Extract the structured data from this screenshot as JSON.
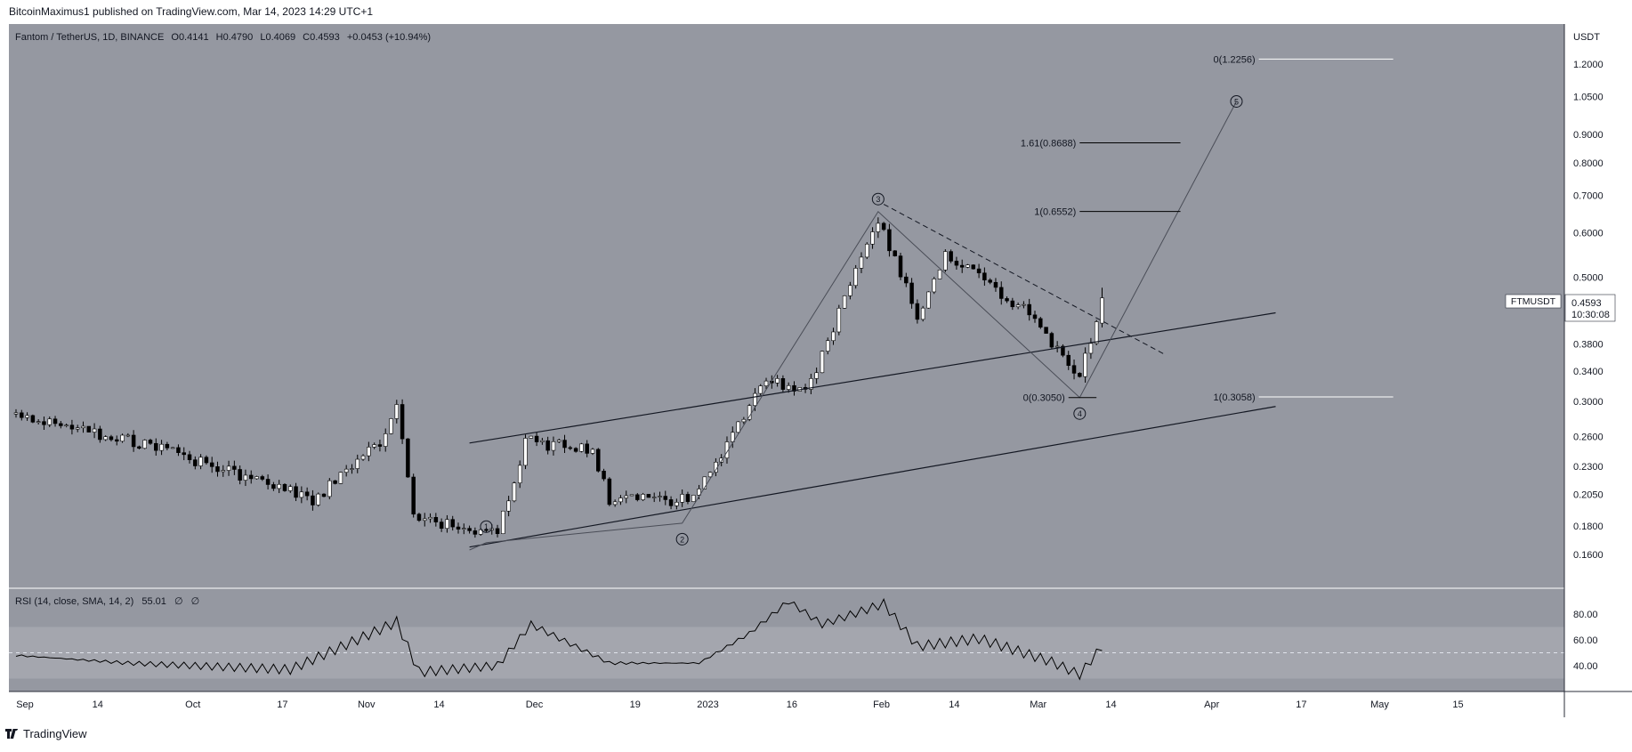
{
  "header": {
    "published": "BitcoinMaximus1 published on TradingView.com, Mar 14, 2023 14:29 UTC+1"
  },
  "footer": {
    "brand": "TradingView"
  },
  "legend": {
    "symbol": "Fantom / TetherUS, 1D, BINANCE",
    "o_label": "O",
    "o_value": "0.4141",
    "h_label": "H",
    "h_value": "0.4790",
    "l_label": "L",
    "l_value": "0.4069",
    "c_label": "C",
    "c_value": "0.4593",
    "change": "+0.0453 (+10.94%)"
  },
  "price_axis": {
    "unit": "USDT",
    "ticks": [
      "1.2000",
      "1.0500",
      "0.9000",
      "0.8000",
      "0.7000",
      "0.6000",
      "0.5000",
      "0.3800",
      "0.3400",
      "0.3000",
      "0.2600",
      "0.2300",
      "0.2050",
      "0.1800",
      "0.1600"
    ]
  },
  "price_label": {
    "ticker": "FTMUSDT",
    "price": "0.4593",
    "countdown": "10:30:08"
  },
  "time_axis": {
    "ticks": [
      "Sep",
      "14",
      "Oct",
      "17",
      "Nov",
      "14",
      "Dec",
      "19",
      "2023",
      "16",
      "Feb",
      "14",
      "Mar",
      "14",
      "Apr",
      "17",
      "May",
      "15"
    ]
  },
  "rsi": {
    "label": "RSI (14, close, SMA, 14, 2)",
    "value": "55.01",
    "extra1": "∅",
    "extra2": "∅",
    "ticks": [
      "80.00",
      "60.00",
      "40.00"
    ],
    "upper_band": 70,
    "lower_band": 30,
    "mid_line": 50
  },
  "fib_levels": [
    {
      "label": "0(1.2256)"
    },
    {
      "label": "1.61(0.8688)"
    },
    {
      "label": "1(0.6552)"
    },
    {
      "label": "0(0.3050)"
    },
    {
      "label": "1(0.3058)"
    }
  ],
  "wave_labels": [
    "1",
    "2",
    "3",
    "4",
    "5"
  ],
  "colors": {
    "chart_bg": "#9598a1",
    "rsi_band": "#a4a6ae",
    "candle_up": "#ffffff",
    "candle_down": "#000000",
    "channel_line": "#131722",
    "fib_white": "#ffffff",
    "fib_black": "#000000",
    "price_tag_bg": "#ffffff"
  },
  "chart_data": {
    "type": "candlestick",
    "title": "Fantom / TetherUS, 1D, BINANCE",
    "y_scale": "log",
    "ylim": [
      0.145,
      1.35
    ],
    "x_range": [
      "2022-09-01",
      "2023-05-20"
    ],
    "candle_range": [
      "2022-09-01",
      "2023-03-14"
    ],
    "last_candle": {
      "date": "2023-03-14",
      "open": 0.4141,
      "high": 0.479,
      "low": 0.4069,
      "close": 0.4593
    },
    "pivot_points": [
      {
        "date": "2022-09-01",
        "close": 0.285
      },
      {
        "date": "2022-09-25",
        "close": 0.25
      },
      {
        "date": "2022-10-12",
        "close": 0.22
      },
      {
        "date": "2022-10-24",
        "close": 0.2
      },
      {
        "date": "2022-11-05",
        "close": 0.255
      },
      {
        "date": "2022-11-08",
        "close": 0.3
      },
      {
        "date": "2022-11-11",
        "close": 0.19
      },
      {
        "date": "2022-11-21",
        "close": 0.175
      },
      {
        "date": "2022-11-26",
        "close": 0.175
      },
      {
        "date": "2022-12-01",
        "close": 0.255
      },
      {
        "date": "2022-12-13",
        "close": 0.245
      },
      {
        "date": "2022-12-16",
        "close": 0.2
      },
      {
        "date": "2022-12-31",
        "close": 0.2
      },
      {
        "date": "2023-01-13",
        "close": 0.33
      },
      {
        "date": "2023-01-20",
        "close": 0.31
      },
      {
        "date": "2023-02-02",
        "close": 0.63
      },
      {
        "date": "2023-02-09",
        "close": 0.43
      },
      {
        "date": "2023-02-14",
        "close": 0.55
      },
      {
        "date": "2023-03-01",
        "close": 0.43
      },
      {
        "date": "2023-03-10",
        "close": 0.33
      },
      {
        "date": "2023-03-14",
        "close": 0.4593
      }
    ],
    "rsi_points": [
      {
        "date": "2022-09-01",
        "value": 48
      },
      {
        "date": "2022-09-21",
        "value": 42
      },
      {
        "date": "2022-10-20",
        "value": 37
      },
      {
        "date": "2022-11-05",
        "value": 68
      },
      {
        "date": "2022-11-08",
        "value": 74
      },
      {
        "date": "2022-11-12",
        "value": 35
      },
      {
        "date": "2022-11-26",
        "value": 40
      },
      {
        "date": "2022-12-02",
        "value": 72
      },
      {
        "date": "2022-12-16",
        "value": 42
      },
      {
        "date": "2023-01-01",
        "value": 42
      },
      {
        "date": "2023-01-10",
        "value": 65
      },
      {
        "date": "2023-01-17",
        "value": 90
      },
      {
        "date": "2023-01-23",
        "value": 72
      },
      {
        "date": "2023-02-03",
        "value": 88
      },
      {
        "date": "2023-02-09",
        "value": 55
      },
      {
        "date": "2023-02-20",
        "value": 61
      },
      {
        "date": "2023-03-05",
        "value": 43
      },
      {
        "date": "2023-03-10",
        "value": 33
      },
      {
        "date": "2023-03-14",
        "value": 55.01
      }
    ],
    "fib_levels": [
      {
        "label": "0(1.2256)",
        "value": 1.2256
      },
      {
        "label": "1.61(0.8688)",
        "value": 0.8688
      },
      {
        "label": "1(0.6552)",
        "value": 0.6552
      },
      {
        "label": "0(0.3050)",
        "value": 0.305
      },
      {
        "label": "1(0.3058)",
        "value": 0.3058
      }
    ],
    "waves": [
      {
        "label": "1",
        "date": "2022-11-24",
        "price": 0.168
      },
      {
        "label": "2",
        "date": "2022-12-29",
        "price": 0.182
      },
      {
        "label": "3",
        "date": "2023-02-02",
        "price": 0.655
      },
      {
        "label": "4",
        "date": "2023-03-10",
        "price": 0.305
      },
      {
        "label": "5",
        "date": "2023-04-07",
        "price": 1.03
      }
    ],
    "channel": {
      "lower": [
        {
          "date": "2022-11-21",
          "price": 0.165
        },
        {
          "date": "2023-04-14",
          "price": 0.294
        }
      ],
      "upper": [
        {
          "date": "2022-11-21",
          "price": 0.253
        },
        {
          "date": "2023-04-14",
          "price": 0.432
        }
      ]
    },
    "resistance_line": [
      {
        "date": "2023-02-03",
        "price": 0.675
      },
      {
        "date": "2023-03-25",
        "price": 0.365
      }
    ]
  }
}
